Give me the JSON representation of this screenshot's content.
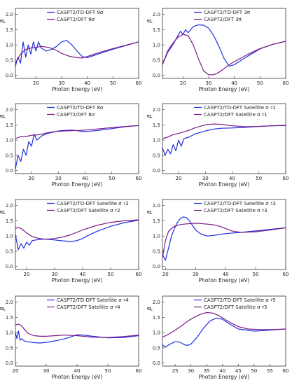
{
  "colors": {
    "blue": "#1f2fe0",
    "purple": "#7b1a86"
  },
  "chart_data": [
    {
      "type": "line",
      "ylabel": "β",
      "xlabel": "Photon Energy (eV)",
      "xlim": [
        12,
        60
      ],
      "ylim": [
        -0.1,
        2.2
      ],
      "xticks": [
        "20",
        "30",
        "40",
        "50",
        "60"
      ],
      "yticks": [
        "0.0",
        "0.5",
        "1.0",
        "1.5",
        "2.0"
      ],
      "legend_position": "top-right",
      "series": [
        {
          "name": "CASPT2/TD-DFT 9σ",
          "color": "#1f2fe0",
          "x": [
            12,
            13,
            14,
            15,
            16,
            17,
            18,
            19,
            20,
            21,
            22,
            24,
            26,
            28,
            30,
            32,
            34,
            36,
            38,
            40,
            45,
            50,
            55,
            60
          ],
          "y": [
            0.3,
            0.6,
            0.4,
            1.1,
            0.6,
            1.0,
            0.7,
            1.1,
            0.8,
            1.1,
            0.9,
            0.8,
            0.85,
            0.95,
            1.1,
            1.15,
            1.0,
            0.8,
            0.62,
            0.58,
            0.72,
            0.86,
            0.98,
            1.1
          ]
        },
        {
          "name": "CASPT2/DFT 9σ",
          "color": "#7b1a86",
          "x": [
            12,
            14,
            16,
            18,
            20,
            22,
            25,
            28,
            30,
            33,
            36,
            38,
            40,
            45,
            50,
            55,
            60
          ],
          "y": [
            0.4,
            0.7,
            0.85,
            0.9,
            0.92,
            0.95,
            0.92,
            0.82,
            0.72,
            0.63,
            0.58,
            0.57,
            0.62,
            0.76,
            0.88,
            0.99,
            1.1
          ]
        }
      ]
    },
    {
      "type": "line",
      "ylabel": "β",
      "xlabel": "Photon Energy (eV)",
      "xlim": [
        12,
        60
      ],
      "ylim": [
        -0.1,
        2.2
      ],
      "xticks": [
        "20",
        "30",
        "40",
        "50",
        "60"
      ],
      "yticks": [
        "0.0",
        "0.5",
        "1.0",
        "1.5",
        "2.0"
      ],
      "legend_position": "top-right",
      "series": [
        {
          "name": "CASPT2/TD-DFT 3π",
          "color": "#1f2fe0",
          "x": [
            12,
            14,
            16,
            18,
            19,
            20,
            21,
            22,
            23,
            24,
            26,
            28,
            30,
            32,
            34,
            36,
            38,
            40,
            45,
            50,
            55,
            60
          ],
          "y": [
            0.35,
            0.75,
            1.0,
            1.3,
            1.45,
            1.35,
            1.5,
            1.4,
            1.5,
            1.6,
            1.66,
            1.65,
            1.55,
            1.3,
            0.95,
            0.55,
            0.3,
            0.35,
            0.62,
            0.87,
            1.02,
            1.12
          ]
        },
        {
          "name": "CASPT2/DFT 3π",
          "color": "#7b1a86",
          "x": [
            12,
            14,
            16,
            18,
            20,
            22,
            24,
            26,
            28,
            30,
            32,
            34,
            36,
            38,
            40,
            45,
            50,
            55,
            60
          ],
          "y": [
            0.35,
            0.8,
            1.05,
            1.25,
            1.35,
            1.3,
            1.0,
            0.55,
            0.15,
            0.02,
            0.02,
            0.1,
            0.22,
            0.35,
            0.45,
            0.68,
            0.88,
            1.02,
            1.12
          ]
        }
      ]
    },
    {
      "type": "line",
      "ylabel": "β",
      "xlabel": "Photon Energy (eV)",
      "xlim": [
        14,
        60
      ],
      "ylim": [
        -0.1,
        2.2
      ],
      "xticks": [
        "20",
        "30",
        "40",
        "50",
        "60"
      ],
      "yticks": [
        "0.0",
        "0.5",
        "1.0",
        "1.5",
        "2.0"
      ],
      "legend_position": "top-right",
      "series": [
        {
          "name": "CASPT2/TD-DFT 8σ",
          "color": "#1f2fe0",
          "x": [
            14,
            15,
            16,
            17,
            18,
            19,
            20,
            21,
            22,
            24,
            26,
            28,
            30,
            32,
            35,
            38,
            40,
            45,
            50,
            55,
            60
          ],
          "y": [
            0.05,
            0.5,
            0.3,
            0.7,
            0.5,
            0.95,
            0.8,
            1.2,
            1.0,
            1.15,
            1.22,
            1.26,
            1.3,
            1.32,
            1.33,
            1.3,
            1.28,
            1.32,
            1.38,
            1.44,
            1.48
          ]
        },
        {
          "name": "CASPT2/DFT 8σ",
          "color": "#7b1a86",
          "x": [
            14,
            16,
            18,
            20,
            22,
            24,
            26,
            28,
            30,
            32,
            35,
            38,
            40,
            45,
            50,
            55,
            60
          ],
          "y": [
            1.05,
            1.12,
            1.12,
            1.16,
            1.17,
            1.2,
            1.24,
            1.27,
            1.29,
            1.3,
            1.31,
            1.32,
            1.33,
            1.37,
            1.41,
            1.45,
            1.48
          ]
        }
      ]
    },
    {
      "type": "line",
      "ylabel": "β",
      "xlabel": "Photon Energy (eV)",
      "xlim": [
        14,
        60
      ],
      "ylim": [
        -0.1,
        2.2
      ],
      "xticks": [
        "20",
        "30",
        "40",
        "50",
        "60"
      ],
      "yticks": [
        "0.0",
        "0.5",
        "1.0",
        "1.5",
        "2.0"
      ],
      "legend_position": "top-right",
      "series": [
        {
          "name": "CASPT2/TD-DFT Satellite σ ♯1",
          "color": "#1f2fe0",
          "x": [
            14,
            15,
            16,
            17,
            18,
            19,
            20,
            21,
            22,
            24,
            26,
            28,
            30,
            33,
            36,
            40,
            45,
            50,
            55,
            60
          ],
          "y": [
            0.75,
            0.5,
            0.7,
            0.55,
            0.85,
            0.65,
            1.0,
            0.8,
            1.05,
            1.1,
            1.2,
            1.25,
            1.3,
            1.36,
            1.39,
            1.4,
            1.42,
            1.45,
            1.47,
            1.48
          ]
        },
        {
          "name": "CASPT2/DFT Satellite σ ♯1",
          "color": "#7b1a86",
          "x": [
            14,
            16,
            18,
            20,
            22,
            24,
            26,
            28,
            30,
            33,
            36,
            40,
            45,
            50,
            55,
            60
          ],
          "y": [
            1.05,
            1.1,
            1.18,
            1.22,
            1.27,
            1.33,
            1.4,
            1.45,
            1.5,
            1.53,
            1.52,
            1.47,
            1.44,
            1.45,
            1.47,
            1.49
          ]
        }
      ]
    },
    {
      "type": "line",
      "ylabel": "β",
      "xlabel": "Photon Energy (eV)",
      "xlim": [
        16,
        60
      ],
      "ylim": [
        -0.1,
        2.2
      ],
      "xticks": [
        "20",
        "30",
        "40",
        "50",
        "60"
      ],
      "yticks": [
        "0.0",
        "0.5",
        "1.0",
        "1.5",
        "2.0"
      ],
      "legend_position": "top-right",
      "series": [
        {
          "name": "CASPT2/TD-DFT Satellite σ ♯2",
          "color": "#1f2fe0",
          "x": [
            16,
            17,
            18,
            19,
            20,
            21,
            22,
            24,
            26,
            28,
            30,
            33,
            36,
            38,
            40,
            42,
            45,
            50,
            55,
            60
          ],
          "y": [
            1.05,
            0.55,
            0.75,
            0.6,
            0.8,
            0.7,
            0.85,
            0.88,
            0.9,
            0.89,
            0.87,
            0.84,
            0.82,
            0.85,
            0.92,
            1.02,
            1.15,
            1.32,
            1.44,
            1.52
          ]
        },
        {
          "name": "CASPT2/DFT Satellite σ ♯2",
          "color": "#7b1a86",
          "x": [
            16,
            17,
            18,
            20,
            22,
            24,
            26,
            28,
            30,
            33,
            36,
            40,
            45,
            50,
            55,
            60
          ],
          "y": [
            1.25,
            1.28,
            1.25,
            1.1,
            0.98,
            0.93,
            0.9,
            0.9,
            0.92,
            0.97,
            1.05,
            1.2,
            1.35,
            1.45,
            1.5,
            1.53
          ]
        }
      ]
    },
    {
      "type": "line",
      "ylabel": "β",
      "xlabel": "Photon Energy (eV)",
      "xlim": [
        19,
        60
      ],
      "ylim": [
        -0.1,
        2.2
      ],
      "xticks": [
        "20",
        "30",
        "40",
        "50",
        "60"
      ],
      "yticks": [
        "0.0",
        "0.5",
        "1.0",
        "1.5",
        "2.0"
      ],
      "legend_position": "top-right",
      "series": [
        {
          "name": "CASPT2/TD-DFT Satellite σ ♯3",
          "color": "#1f2fe0",
          "x": [
            19,
            20,
            21,
            22,
            23,
            24,
            25,
            26,
            27,
            28,
            29,
            30,
            32,
            34,
            36,
            38,
            40,
            45,
            50,
            55,
            60
          ],
          "y": [
            0.4,
            0.2,
            0.6,
            1.0,
            1.25,
            1.45,
            1.58,
            1.63,
            1.6,
            1.5,
            1.35,
            1.2,
            1.05,
            1.0,
            1.02,
            1.05,
            1.08,
            1.12,
            1.17,
            1.22,
            1.27
          ]
        },
        {
          "name": "CASPT2/DFT Satellite σ ♯3",
          "color": "#7b1a86",
          "x": [
            19,
            20,
            21,
            22,
            23,
            25,
            27,
            30,
            33,
            36,
            38,
            40,
            42,
            45,
            50,
            55,
            60
          ],
          "y": [
            0.3,
            0.85,
            1.15,
            1.25,
            1.32,
            1.38,
            1.4,
            1.42,
            1.4,
            1.37,
            1.32,
            1.25,
            1.17,
            1.12,
            1.14,
            1.2,
            1.27
          ]
        }
      ]
    },
    {
      "type": "line",
      "ylabel": "β",
      "xlabel": "Photon Energy (eV)",
      "xlim": [
        20,
        60
      ],
      "ylim": [
        -0.1,
        2.2
      ],
      "xticks": [
        "20",
        "30",
        "40",
        "50",
        "60"
      ],
      "yticks": [
        "0.0",
        "0.5",
        "1.0",
        "1.5",
        "2.0"
      ],
      "legend_position": "top-right",
      "series": [
        {
          "name": "CASPT2/TD-DFT Satellite σ ♯4",
          "color": "#1f2fe0",
          "x": [
            20,
            20.5,
            21,
            21.5,
            22,
            23,
            24,
            26,
            28,
            30,
            33,
            36,
            38,
            40,
            42,
            45,
            50,
            55,
            60
          ],
          "y": [
            1.0,
            0.8,
            1.05,
            0.75,
            0.8,
            0.72,
            0.7,
            0.67,
            0.66,
            0.68,
            0.73,
            0.8,
            0.86,
            0.93,
            0.92,
            0.88,
            0.83,
            0.84,
            0.9
          ]
        },
        {
          "name": "CASPT2/DFT Satellite σ ♯4",
          "color": "#7b1a86",
          "x": [
            20,
            21,
            22,
            23,
            24,
            26,
            28,
            30,
            33,
            36,
            40,
            45,
            50,
            55,
            60
          ],
          "y": [
            1.25,
            1.28,
            1.22,
            1.1,
            0.98,
            0.9,
            0.88,
            0.88,
            0.9,
            0.92,
            0.9,
            0.85,
            0.84,
            0.87,
            0.92
          ]
        }
      ]
    },
    {
      "type": "line",
      "ylabel": "β",
      "xlabel": "Photon Energy (eV)",
      "xlim": [
        21,
        60
      ],
      "ylim": [
        -0.1,
        2.2
      ],
      "xticks": [
        "25",
        "30",
        "35",
        "40",
        "45",
        "50",
        "55",
        "60"
      ],
      "yticks": [
        "0.0",
        "0.5",
        "1.0",
        "1.5",
        "2.0"
      ],
      "legend_position": "top-right",
      "series": [
        {
          "name": "CASPT2/TD-DFT Satellite σ ♯5",
          "color": "#1f2fe0",
          "x": [
            21,
            22,
            23,
            24,
            25,
            26,
            27,
            28,
            29,
            30,
            32,
            34,
            36,
            38,
            40,
            42,
            45,
            50,
            55,
            60
          ],
          "y": [
            0.6,
            0.52,
            0.6,
            0.65,
            0.7,
            0.7,
            0.66,
            0.6,
            0.58,
            0.62,
            0.85,
            1.15,
            1.38,
            1.48,
            1.44,
            1.3,
            1.12,
            1.05,
            1.08,
            1.12
          ]
        },
        {
          "name": "CASPT2/DFT Satellite σ ♯5",
          "color": "#7b1a86",
          "x": [
            21,
            22,
            23,
            25,
            27,
            29,
            31,
            33,
            35,
            37,
            39,
            41,
            43,
            45,
            48,
            52,
            56,
            60
          ],
          "y": [
            0.85,
            0.9,
            0.95,
            1.08,
            1.22,
            1.38,
            1.5,
            1.6,
            1.66,
            1.64,
            1.55,
            1.42,
            1.3,
            1.2,
            1.12,
            1.1,
            1.1,
            1.12
          ]
        }
      ]
    }
  ]
}
